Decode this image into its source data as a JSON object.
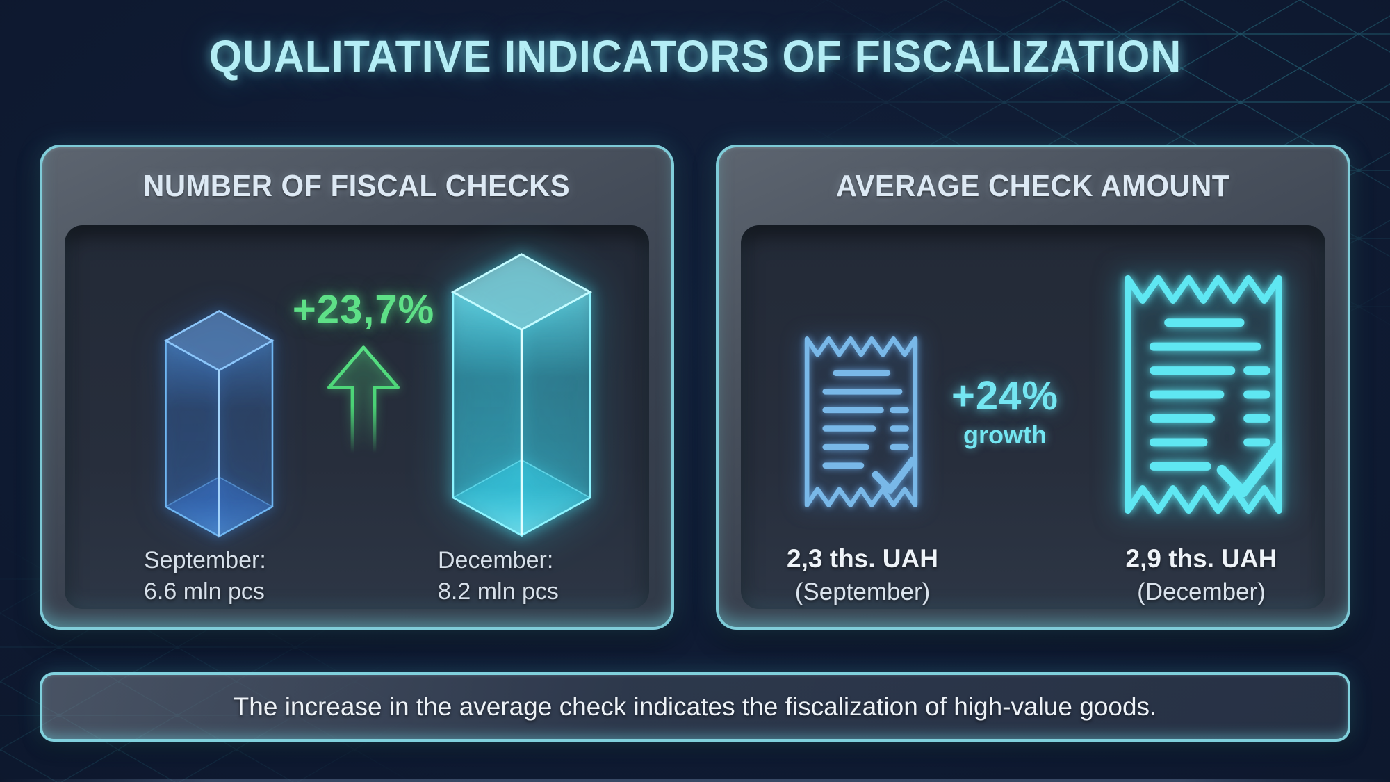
{
  "title": "QUALITATIVE INDICATORS OF FISCALIZATION",
  "left_panel": {
    "header": "NUMBER OF FISCAL CHECKS",
    "change": "+23,7%",
    "september": {
      "label": "September:",
      "value": "6.6 mln pcs"
    },
    "december": {
      "label": "December:",
      "value": "8.2 mln pcs"
    }
  },
  "right_panel": {
    "header": "AVERAGE CHECK AMOUNT",
    "change": "+24%",
    "change_caption": "growth",
    "september": {
      "value": "2,3 ths. UAH",
      "period": "(September)"
    },
    "december": {
      "value": "2,9 ths. UAH",
      "period": "(December)"
    }
  },
  "footer": {
    "text": "The increase in the average check indicates the fiscalization of high-value goods."
  },
  "colors": {
    "background": "#0c1728",
    "accent_cyan": "#7fdce8",
    "accent_green": "#5ee087",
    "bar_september": "#4a9cf0",
    "bar_december": "#4fe3f2",
    "title_text": "#b4edf5",
    "body_text": "#dbe4ee"
  },
  "chart_data": [
    {
      "type": "bar",
      "title": "NUMBER OF FISCAL CHECKS",
      "categories": [
        "September",
        "December"
      ],
      "values": [
        6.6,
        8.2
      ],
      "unit": "mln pcs",
      "change_label": "+23,7%",
      "annotations": [
        "September: 6.6 mln pcs",
        "December: 8.2 mln pcs"
      ],
      "legend_position": "none",
      "grid": false
    },
    {
      "type": "bar",
      "title": "AVERAGE CHECK AMOUNT",
      "categories": [
        "September",
        "December"
      ],
      "values": [
        2.3,
        2.9
      ],
      "unit": "ths. UAH",
      "change_label": "+24% growth",
      "annotations": [
        "2,3 ths. UAH (September)",
        "2,9 ths. UAH (December)"
      ],
      "legend_position": "none",
      "grid": false
    }
  ]
}
